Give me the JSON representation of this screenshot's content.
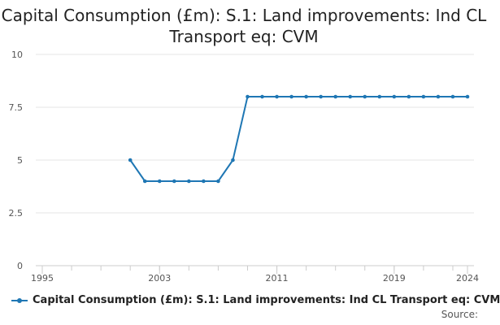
{
  "chart_data": {
    "type": "line",
    "title_line1": "Capital Consumption (£m): S.1: Land improvements: Ind CL",
    "title_line2": "Transport eq: CVM",
    "xlabel": "",
    "ylabel": "",
    "x_tick_labels": [
      "1995",
      "2003",
      "2011",
      "2019",
      "2024"
    ],
    "y_tick_labels": [
      "0",
      "2.5",
      "5",
      "7.5",
      "10"
    ],
    "xlim": [
      1995,
      2024
    ],
    "ylim": [
      0,
      10
    ],
    "grid": "horizontal",
    "legend_position": "bottom",
    "series": [
      {
        "name": "Capital Consumption (£m): S.1: Land improvements: Ind CL Transport eq: CVM",
        "color": "#1f77b4",
        "x": [
          2001,
          2002,
          2003,
          2004,
          2005,
          2006,
          2007,
          2008,
          2009,
          2010,
          2011,
          2012,
          2013,
          2014,
          2015,
          2016,
          2017,
          2018,
          2019,
          2020,
          2021,
          2022,
          2023,
          2024
        ],
        "y": [
          5,
          4,
          4,
          4,
          4,
          4,
          4,
          5,
          8,
          8,
          8,
          8,
          8,
          8,
          8,
          8,
          8,
          8,
          8,
          8,
          8,
          8,
          8,
          8
        ]
      }
    ]
  },
  "source_label": "Source:"
}
